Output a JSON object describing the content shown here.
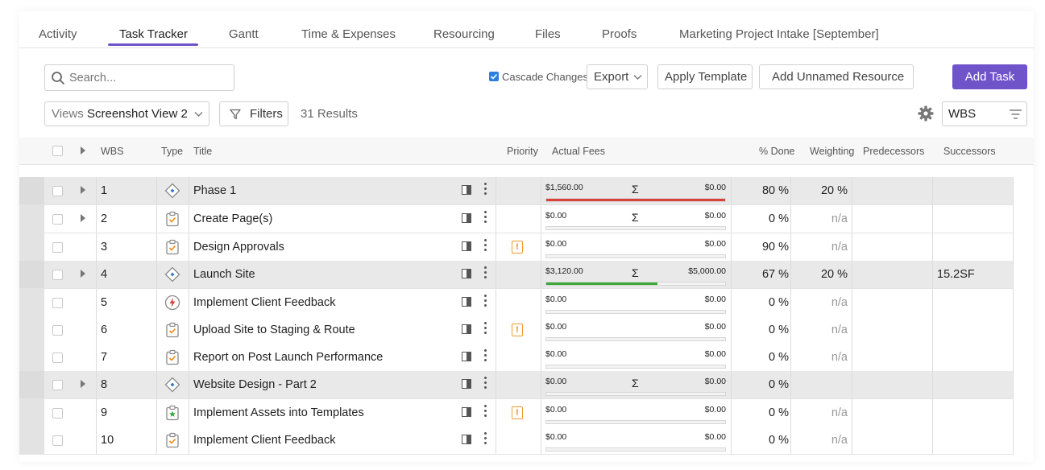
{
  "tabs": [
    {
      "label": "Activity",
      "active": false
    },
    {
      "label": "Task Tracker",
      "active": true
    },
    {
      "label": "Gantt",
      "active": false
    },
    {
      "label": "Time & Expenses",
      "active": false
    },
    {
      "label": "Resourcing",
      "active": false
    },
    {
      "label": "Files",
      "active": false
    },
    {
      "label": "Proofs",
      "active": false
    },
    {
      "label": "Marketing Project Intake [September]",
      "active": false
    }
  ],
  "toolbar": {
    "search_placeholder": "Search...",
    "cascade_label": "Cascade Changes",
    "cascade_checked": true,
    "export_label": "Export",
    "apply_template_label": "Apply Template",
    "add_unnamed_resource_label": "Add Unnamed Resource",
    "add_task_label": "Add Task",
    "views_label": "Views",
    "views_value": "Screenshot View 2",
    "filters_label": "Filters",
    "results_label": "31 Results",
    "sort_value": "WBS"
  },
  "colors": {
    "accent": "#6f53c9",
    "bar_red": "#d9413a",
    "bar_green": "#3aa935",
    "priority": "#f08a10"
  },
  "columns": {
    "wbs": "WBS",
    "type": "Type",
    "title": "Title",
    "priority": "Priority",
    "actual_fees": "Actual Fees",
    "done": "% Done",
    "weighting": "Weighting",
    "predecessors": "Predecessors",
    "successors": "Successors"
  },
  "rows": [
    {
      "wbs": "1",
      "type": "phase",
      "title": "Phase 1",
      "expandable": true,
      "priority": false,
      "fee_actual": "$1,560.00",
      "fee_budget": "$0.00",
      "sigma": "Σ",
      "bar_color": "#d9413a",
      "bar_fraction": 1.0,
      "done": "80 %",
      "weighting": "20 %",
      "successors": ""
    },
    {
      "wbs": "2",
      "type": "task",
      "title": "Create Page(s)",
      "expandable": true,
      "priority": false,
      "fee_actual": "$0.00",
      "fee_budget": "$0.00",
      "sigma": "Σ",
      "bar_color": "",
      "bar_fraction": 0,
      "done": "0 %",
      "weighting": "n/a",
      "successors": ""
    },
    {
      "wbs": "3",
      "type": "task",
      "title": "Design Approvals",
      "expandable": false,
      "priority": true,
      "priority_glyph": "!",
      "fee_actual": "$0.00",
      "fee_budget": "$0.00",
      "sigma": "",
      "bar_color": "",
      "bar_fraction": 0,
      "done": "90 %",
      "weighting": "n/a",
      "successors": ""
    },
    {
      "wbs": "4",
      "type": "phase",
      "title": "Launch Site",
      "expandable": true,
      "priority": false,
      "fee_actual": "$3,120.00",
      "fee_budget": "$5,000.00",
      "sigma": "Σ",
      "bar_color": "#3aa935",
      "bar_fraction": 0.62,
      "done": "67 %",
      "weighting": "20 %",
      "successors": "15.2SF"
    },
    {
      "wbs": "5",
      "type": "bolt",
      "title": "Implement Client Feedback",
      "expandable": false,
      "priority": false,
      "fee_actual": "$0.00",
      "fee_budget": "$0.00",
      "sigma": "",
      "bar_color": "",
      "bar_fraction": 0,
      "done": "0 %",
      "weighting": "n/a",
      "successors": ""
    },
    {
      "wbs": "6",
      "type": "task",
      "title": "Upload Site to Staging & Route",
      "expandable": false,
      "priority": true,
      "priority_glyph": "!",
      "fee_actual": "$0.00",
      "fee_budget": "$0.00",
      "sigma": "",
      "bar_color": "",
      "bar_fraction": 0,
      "done": "0 %",
      "weighting": "n/a",
      "successors": ""
    },
    {
      "wbs": "7",
      "type": "task",
      "title": "Report on Post Launch Performance",
      "expandable": false,
      "priority": false,
      "fee_actual": "$0.00",
      "fee_budget": "$0.00",
      "sigma": "",
      "bar_color": "",
      "bar_fraction": 0,
      "done": "0 %",
      "weighting": "n/a",
      "successors": ""
    },
    {
      "wbs": "8",
      "type": "phase",
      "title": "Website Design - Part 2",
      "expandable": true,
      "priority": false,
      "fee_actual": "$0.00",
      "fee_budget": "$0.00",
      "sigma": "Σ",
      "bar_color": "",
      "bar_fraction": 0,
      "done": "0 %",
      "weighting": "",
      "successors": ""
    },
    {
      "wbs": "9",
      "type": "milestone",
      "title": "Implement Assets into Templates",
      "expandable": false,
      "priority": true,
      "priority_glyph": "!",
      "fee_actual": "$0.00",
      "fee_budget": "$0.00",
      "sigma": "",
      "bar_color": "",
      "bar_fraction": 0,
      "done": "0 %",
      "weighting": "n/a",
      "successors": ""
    },
    {
      "wbs": "10",
      "type": "task",
      "title": "Implement Client Feedback",
      "expandable": false,
      "priority": false,
      "fee_actual": "$0.00",
      "fee_budget": "$0.00",
      "sigma": "",
      "bar_color": "",
      "bar_fraction": 0,
      "done": "0 %",
      "weighting": "n/a",
      "successors": ""
    }
  ]
}
